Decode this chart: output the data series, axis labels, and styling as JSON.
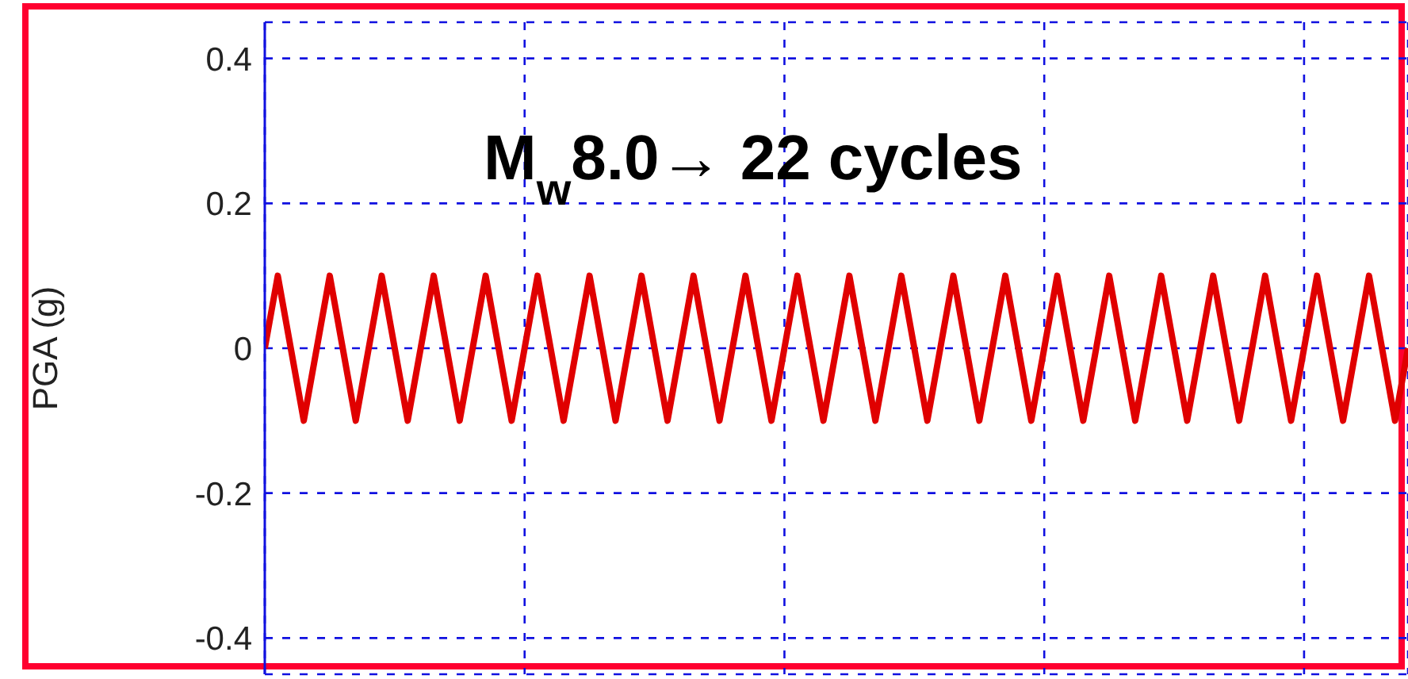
{
  "chart_data": {
    "type": "line",
    "ylabel": "PGA  (g)",
    "annotations": [
      "M$_{w}$8.0→ 22 cycles"
    ],
    "categories": [
      null,
      null,
      null,
      null,
      null,
      null,
      null,
      null,
      null,
      null,
      null,
      null,
      null,
      null,
      null,
      null,
      null,
      null,
      null,
      null,
      null,
      null,
      null,
      null,
      null,
      null,
      null,
      null,
      null,
      null,
      null,
      null,
      null,
      null,
      null,
      null,
      null,
      null,
      null,
      null,
      null,
      null,
      null,
      null,
      null,
      null,
      null,
      null,
      null,
      null,
      null,
      null,
      null,
      null,
      null,
      null,
      null,
      null,
      null,
      null,
      null,
      null,
      null,
      null,
      null,
      null,
      null,
      null,
      null,
      null,
      null,
      null,
      null,
      null,
      null,
      null,
      null,
      null,
      null,
      null,
      null,
      null,
      null,
      null,
      null,
      null,
      null,
      null,
      null
    ],
    "series": [
      {
        "color": "#e00000",
        "values": [
          0,
          0.1,
          0,
          -0.1,
          0,
          0.1,
          0,
          -0.1,
          0,
          0.1,
          0,
          -0.1,
          0,
          0.1,
          0,
          -0.1,
          0,
          0.1,
          0,
          -0.1,
          0,
          0.1,
          0,
          -0.1,
          0,
          0.1,
          0,
          -0.1,
          0,
          0.1,
          0,
          -0.1,
          0,
          0.1,
          0,
          -0.1,
          0,
          0.1,
          0,
          -0.1,
          0,
          0.1,
          0,
          -0.1,
          0,
          0.1,
          0,
          -0.1,
          0,
          0.1,
          0,
          -0.1,
          0,
          0.1,
          0,
          -0.1,
          0,
          0.1,
          0,
          -0.1,
          0,
          0.1,
          0,
          -0.1,
          0,
          0.1,
          0,
          -0.1,
          0,
          0.1,
          0,
          -0.1,
          0,
          0.1,
          0,
          -0.1,
          0,
          0.1,
          0,
          -0.1,
          0,
          0.1,
          0,
          -0.1,
          0,
          0.1,
          0,
          -0.1,
          0
        ]
      }
    ],
    "ylim": [
      -0.45,
      0.45
    ],
    "yticks": [
      -0.4,
      -0.2,
      0,
      0.2,
      0.4
    ],
    "grid": true,
    "tick_labels": "y"
  }
}
